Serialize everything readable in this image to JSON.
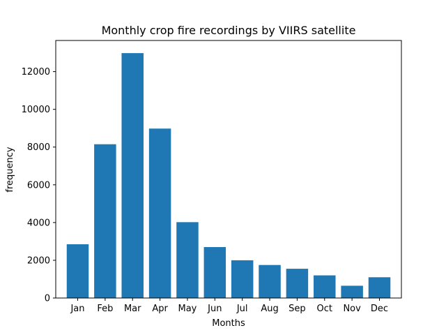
{
  "chart_data": {
    "type": "bar",
    "title": "Monthly crop fire recordings by VIIRS satellite",
    "xlabel": "Months",
    "ylabel": "frequency",
    "categories": [
      "Jan",
      "Feb",
      "Mar",
      "Apr",
      "May",
      "Jun",
      "Jul",
      "Aug",
      "Sep",
      "Oct",
      "Nov",
      "Dec"
    ],
    "values": [
      2850,
      8150,
      12980,
      8980,
      4020,
      2700,
      2000,
      1750,
      1550,
      1200,
      650,
      1100
    ],
    "ylim": [
      0,
      13650
    ],
    "yticks": [
      0,
      2000,
      4000,
      6000,
      8000,
      10000,
      12000
    ],
    "grid": false,
    "bar_color": "#1f77b4"
  }
}
